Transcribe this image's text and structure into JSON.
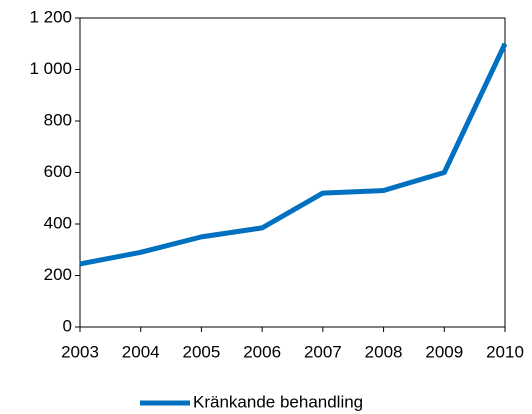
{
  "chart_data": {
    "type": "line",
    "x": [
      2003,
      2004,
      2005,
      2006,
      2007,
      2008,
      2009,
      2010
    ],
    "series": [
      {
        "name": "Kränkande behandling",
        "color": "#0070c0",
        "values": [
          245,
          290,
          350,
          385,
          520,
          530,
          600,
          1100
        ]
      }
    ],
    "xlim": [
      2003,
      2010
    ],
    "xticks": [
      2003,
      2004,
      2005,
      2006,
      2007,
      2008,
      2009,
      2010
    ],
    "ylim": [
      0,
      1200
    ],
    "yticks": [
      0,
      200,
      400,
      600,
      800,
      {
        "value": 1000,
        "label": "1 000"
      },
      {
        "value": 1200,
        "label": "1 200"
      }
    ],
    "grid": false,
    "legend": "bottom"
  }
}
